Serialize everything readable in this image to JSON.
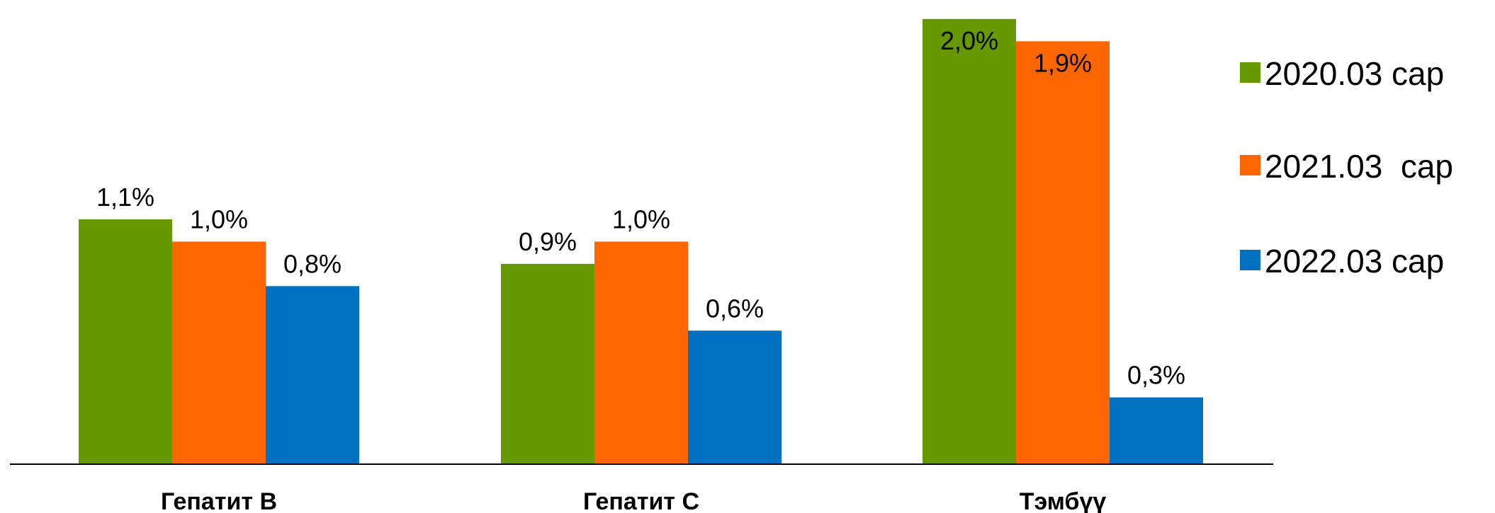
{
  "chart_data": {
    "type": "bar",
    "categories": [
      "Гепатит В",
      "Гепатит С",
      "Тэмбүү"
    ],
    "series": [
      {
        "name": "2020.03 сар",
        "color": "#669900",
        "values": [
          1.1,
          0.9,
          2.0
        ],
        "labels": [
          "1,1%",
          "0,9%",
          "2,0%"
        ]
      },
      {
        "name": "2021.03  сар",
        "color": "#FF6600",
        "values": [
          1.0,
          1.0,
          1.9
        ],
        "labels": [
          "1,0%",
          "1,0%",
          "1,9%"
        ]
      },
      {
        "name": "2022.03 сар",
        "color": "#0070C0",
        "values": [
          0.8,
          0.6,
          0.3
        ],
        "labels": [
          "0,8%",
          "0,6%",
          "0,3%"
        ]
      }
    ],
    "ylim": [
      0,
      2.06
    ],
    "grid": false,
    "legend": "right",
    "title": "",
    "xlabel": "",
    "ylabel": ""
  }
}
